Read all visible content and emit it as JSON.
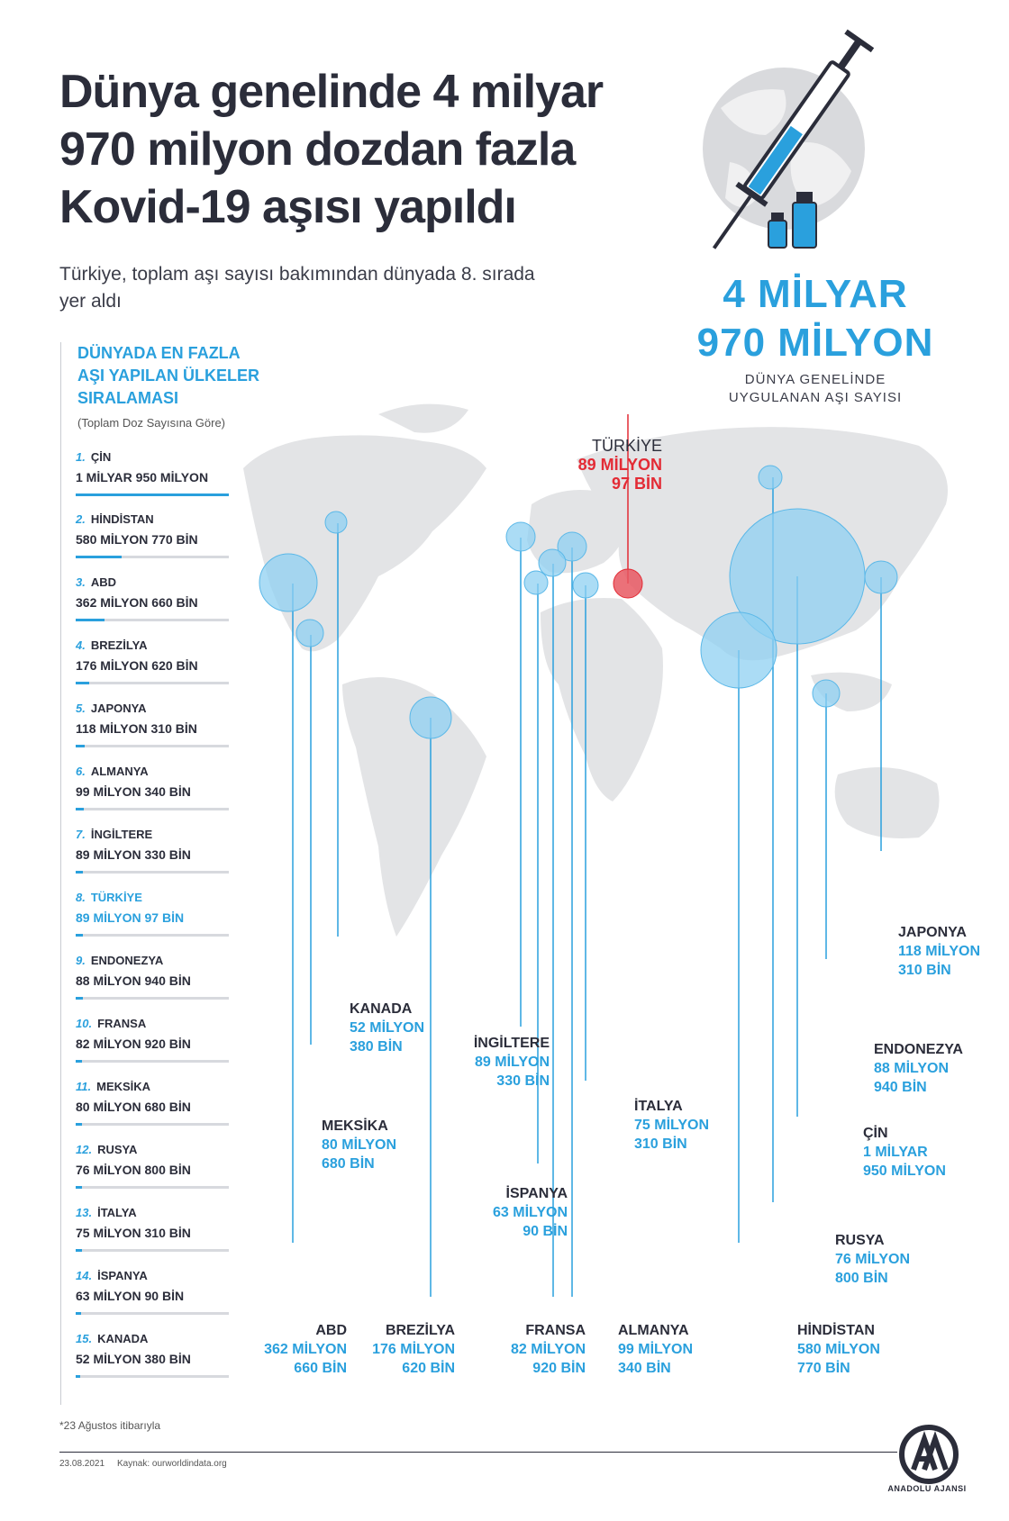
{
  "title_lines": [
    "Dünya genelinde 4 milyar",
    "970 milyon dozdan fazla",
    "Kovid-19 aşısı yapıldı"
  ],
  "subtitle": "Türkiye, toplam aşı sayısı bakımından dünyada 8. sırada yer aldı",
  "total": {
    "line1": "4 MİLYAR",
    "line2": "970 MİLYON",
    "caption_line1": "DÜNYA GENELİNDE",
    "caption_line2": "UYGULANAN AŞI SAYISI"
  },
  "ranking": {
    "heading_lines": [
      "DÜNYADA EN FAZLA",
      "AŞI YAPILAN ÜLKELER",
      "SIRALAMASI"
    ],
    "subheading": "(Toplam Doz Sayısına Göre)",
    "items": [
      {
        "rank": "1.",
        "country": "ÇİN",
        "value": "1 MİLYAR 950 MİLYON",
        "amount_millions": 1950
      },
      {
        "rank": "2.",
        "country": "HİNDİSTAN",
        "value": "580 MİLYON 770 BİN",
        "amount_millions": 580.77
      },
      {
        "rank": "3.",
        "country": "ABD",
        "value": "362 MİLYON 660 BİN",
        "amount_millions": 362.66
      },
      {
        "rank": "4.",
        "country": "BREZİLYA",
        "value": "176 MİLYON 620 BİN",
        "amount_millions": 176.62
      },
      {
        "rank": "5.",
        "country": "JAPONYA",
        "value": "118 MİLYON 310 BİN",
        "amount_millions": 118.31
      },
      {
        "rank": "6.",
        "country": "ALMANYA",
        "value": "99 MİLYON 340 BİN",
        "amount_millions": 99.34
      },
      {
        "rank": "7.",
        "country": "İNGİLTERE",
        "value": "89 MİLYON 330 BİN",
        "amount_millions": 89.33
      },
      {
        "rank": "8.",
        "country": "TÜRKİYE",
        "value": "89 MİLYON 97 BİN",
        "amount_millions": 89.097
      },
      {
        "rank": "9.",
        "country": "ENDONEZYA",
        "value": "88 MİLYON 940 BİN",
        "amount_millions": 88.94
      },
      {
        "rank": "10.",
        "country": "FRANSA",
        "value": "82 MİLYON 920 BİN",
        "amount_millions": 82.92
      },
      {
        "rank": "11.",
        "country": "MEKSİKA",
        "value": "80 MİLYON 680 BİN",
        "amount_millions": 80.68
      },
      {
        "rank": "12.",
        "country": "RUSYA",
        "value": "76 MİLYON 800 BİN",
        "amount_millions": 76.8
      },
      {
        "rank": "13.",
        "country": "İTALYA",
        "value": "75 MİLYON 310 BİN",
        "amount_millions": 75.31
      },
      {
        "rank": "14.",
        "country": "İSPANYA",
        "value": "63 MİLYON 90 BİN",
        "amount_millions": 63.09
      },
      {
        "rank": "15.",
        "country": "KANADA",
        "value": "52 MİLYON 380 BİN",
        "amount_millions": 52.38
      }
    ]
  },
  "map_labels": {
    "turkey": {
      "name": "TÜRKİYE",
      "v1": "89 MİLYON",
      "v2": "97 BİN"
    },
    "kanada": {
      "name": "KANADA",
      "v1": "52 MİLYON",
      "v2": "380 BİN"
    },
    "meksika": {
      "name": "MEKSİKA",
      "v1": "80 MİLYON",
      "v2": "680 BİN"
    },
    "abd": {
      "name": "ABD",
      "v1": "362 MİLYON",
      "v2": "660 BİN"
    },
    "brezilya": {
      "name": "BREZİLYA",
      "v1": "176 MİLYON",
      "v2": "620 BİN"
    },
    "ingiltere": {
      "name": "İNGİLTERE",
      "v1": "89 MİLYON",
      "v2": "330 BİN"
    },
    "ispanya": {
      "name": "İSPANYA",
      "v1": "63 MİLYON",
      "v2": "90 BİN"
    },
    "fransa": {
      "name": "FRANSA",
      "v1": "82 MİLYON",
      "v2": "920 BİN"
    },
    "italya": {
      "name": "İTALYA",
      "v1": "75 MİLYON",
      "v2": "310 BİN"
    },
    "almanya": {
      "name": "ALMANYA",
      "v1": "99 MİLYON",
      "v2": "340 BİN"
    },
    "hindistan": {
      "name": "HİNDİSTAN",
      "v1": "580 MİLYON",
      "v2": "770 BİN"
    },
    "rusya": {
      "name": "RUSYA",
      "v1": "76 MİLYON",
      "v2": "800 BİN"
    },
    "cin": {
      "name": "ÇİN",
      "v1": "1 MİLYAR",
      "v2": "950 MİLYON"
    },
    "endonezya": {
      "name": "ENDONEZYA",
      "v1": "88 MİLYON",
      "v2": "940 BİN"
    },
    "japonya": {
      "name": "JAPONYA",
      "v1": "118 MİLYON",
      "v2": "310 BİN"
    }
  },
  "footnote": "*23 Ağustos itibarıyla",
  "date": "23.08.2021",
  "source": "Kaynak: ourworldindata.org",
  "logo_text": "ANADOLU AJANSI",
  "colors": {
    "accent": "#2aa0dd",
    "turkey": "#e32b35",
    "text": "#2b2d3a",
    "land": "#e3e4e6",
    "bubble": "#8fd0f2"
  }
}
